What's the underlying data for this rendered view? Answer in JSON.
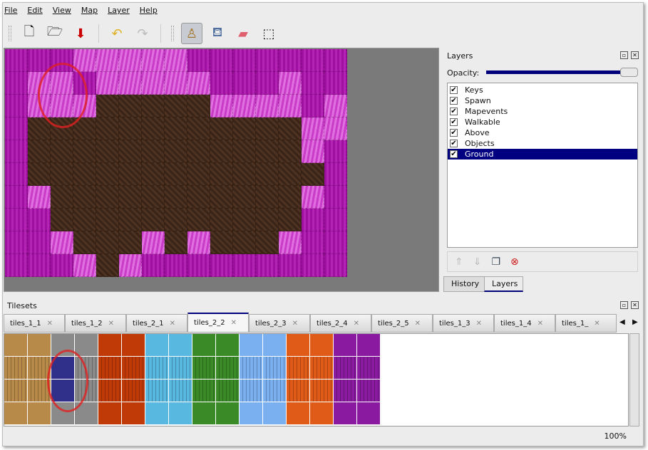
{
  "menu": [
    "File",
    "Edit",
    "View",
    "Map",
    "Layer",
    "Help"
  ],
  "toolbar": [
    {
      "name": "new-icon",
      "glyph": "🗋"
    },
    {
      "name": "open-icon",
      "glyph": "🗁"
    },
    {
      "name": "save-icon",
      "glyph": "⬇"
    },
    {
      "name": "undo-icon",
      "glyph": "↶"
    },
    {
      "name": "redo-icon",
      "glyph": "↷"
    },
    {
      "name": "stamp-brush-icon",
      "glyph": "♙"
    },
    {
      "name": "bucket-fill-icon",
      "glyph": "⛾"
    },
    {
      "name": "eraser-icon",
      "glyph": "▰"
    },
    {
      "name": "rectangle-select-icon",
      "glyph": "⬚"
    }
  ],
  "map": {
    "tiles": [
      "mmmlllllmmmmmmm",
      "mllmlllllmmmlmm",
      "mllldddddllllmlm",
      "mddddddddddddllm",
      "mddddddddddddlmm",
      "mdddddddddddddm",
      "mldddddddddddlm",
      "mmdddddddddddmm",
      "mmldddldldddlmm",
      "mmmldlmmmmmmmmm"
    ]
  },
  "layers": {
    "title": "Layers",
    "opacity_label": "Opacity:",
    "opacity": 1.0,
    "items": [
      {
        "label": "Keys",
        "checked": true
      },
      {
        "label": "Spawn",
        "checked": true
      },
      {
        "label": "Mapevents",
        "checked": true
      },
      {
        "label": "Walkable",
        "checked": true
      },
      {
        "label": "Above",
        "checked": true
      },
      {
        "label": "Objects",
        "checked": true
      },
      {
        "label": "Ground",
        "checked": true,
        "selected": true
      }
    ]
  },
  "panel_tabs": [
    "History",
    "Layers"
  ],
  "tilesets": {
    "title": "Tilesets",
    "tabs": [
      "tiles_1_1",
      "tiles_1_2",
      "tiles_2_1",
      "tiles_2_2",
      "tiles_2_3",
      "tiles_2_4",
      "tiles_2_5",
      "tiles_1_3",
      "tiles_1_4",
      "tiles_1_"
    ],
    "active": "tiles_2_2",
    "colors": [
      "#b88a4a",
      "#8a8a8a",
      "#c03a08",
      "#58b8e0",
      "#3a8a28",
      "#7ab0f0",
      "#e05a18",
      "#8a1aa0"
    ]
  },
  "status": {
    "zoom": "100%"
  }
}
